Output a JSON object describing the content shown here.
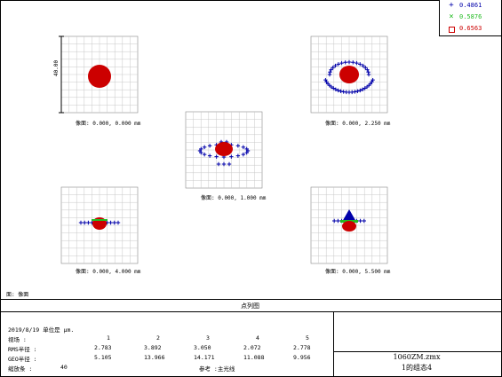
{
  "legend": [
    {
      "symbol": "+",
      "label": "0.4861",
      "color": "#0000aa"
    },
    {
      "symbol": "×",
      "label": "0.5876",
      "color": "#22bb22"
    },
    {
      "symbol": "□",
      "label": "0.6563",
      "color": "#cc0000"
    }
  ],
  "scale_label": "40.00",
  "fields": [
    {
      "caption": "像面: 0.000, 0.000 mm"
    },
    {
      "caption": "像面: 0.000, 2.250 mm"
    },
    {
      "caption": "像面: 0.000, 1.000 mm"
    },
    {
      "caption": "像面: 0.000, 4.000 mm"
    },
    {
      "caption": "像面: 0.000, 5.500 mm"
    }
  ],
  "surface_label": "面: 像面",
  "title": "点列图",
  "info": {
    "date_line": "2019/8/19  单位是 μm.",
    "field_label": "视场     :",
    "field_numbers": [
      "1",
      "2",
      "3",
      "4",
      "5"
    ],
    "rms_label": "RMS半径  :",
    "rms_values": [
      "2.783",
      "3.892",
      "3.050",
      "2.072",
      "2.778"
    ],
    "geo_label": "GEO半径  :",
    "geo_values": [
      "5.105",
      "13.966",
      "14.171",
      "11.088",
      "9.956"
    ],
    "scale_label": "缩放条   :",
    "scale_value": "40",
    "reference": "参考  :主光线"
  },
  "file_name": "1060ZM.zmx",
  "configuration": "1的组态4"
}
